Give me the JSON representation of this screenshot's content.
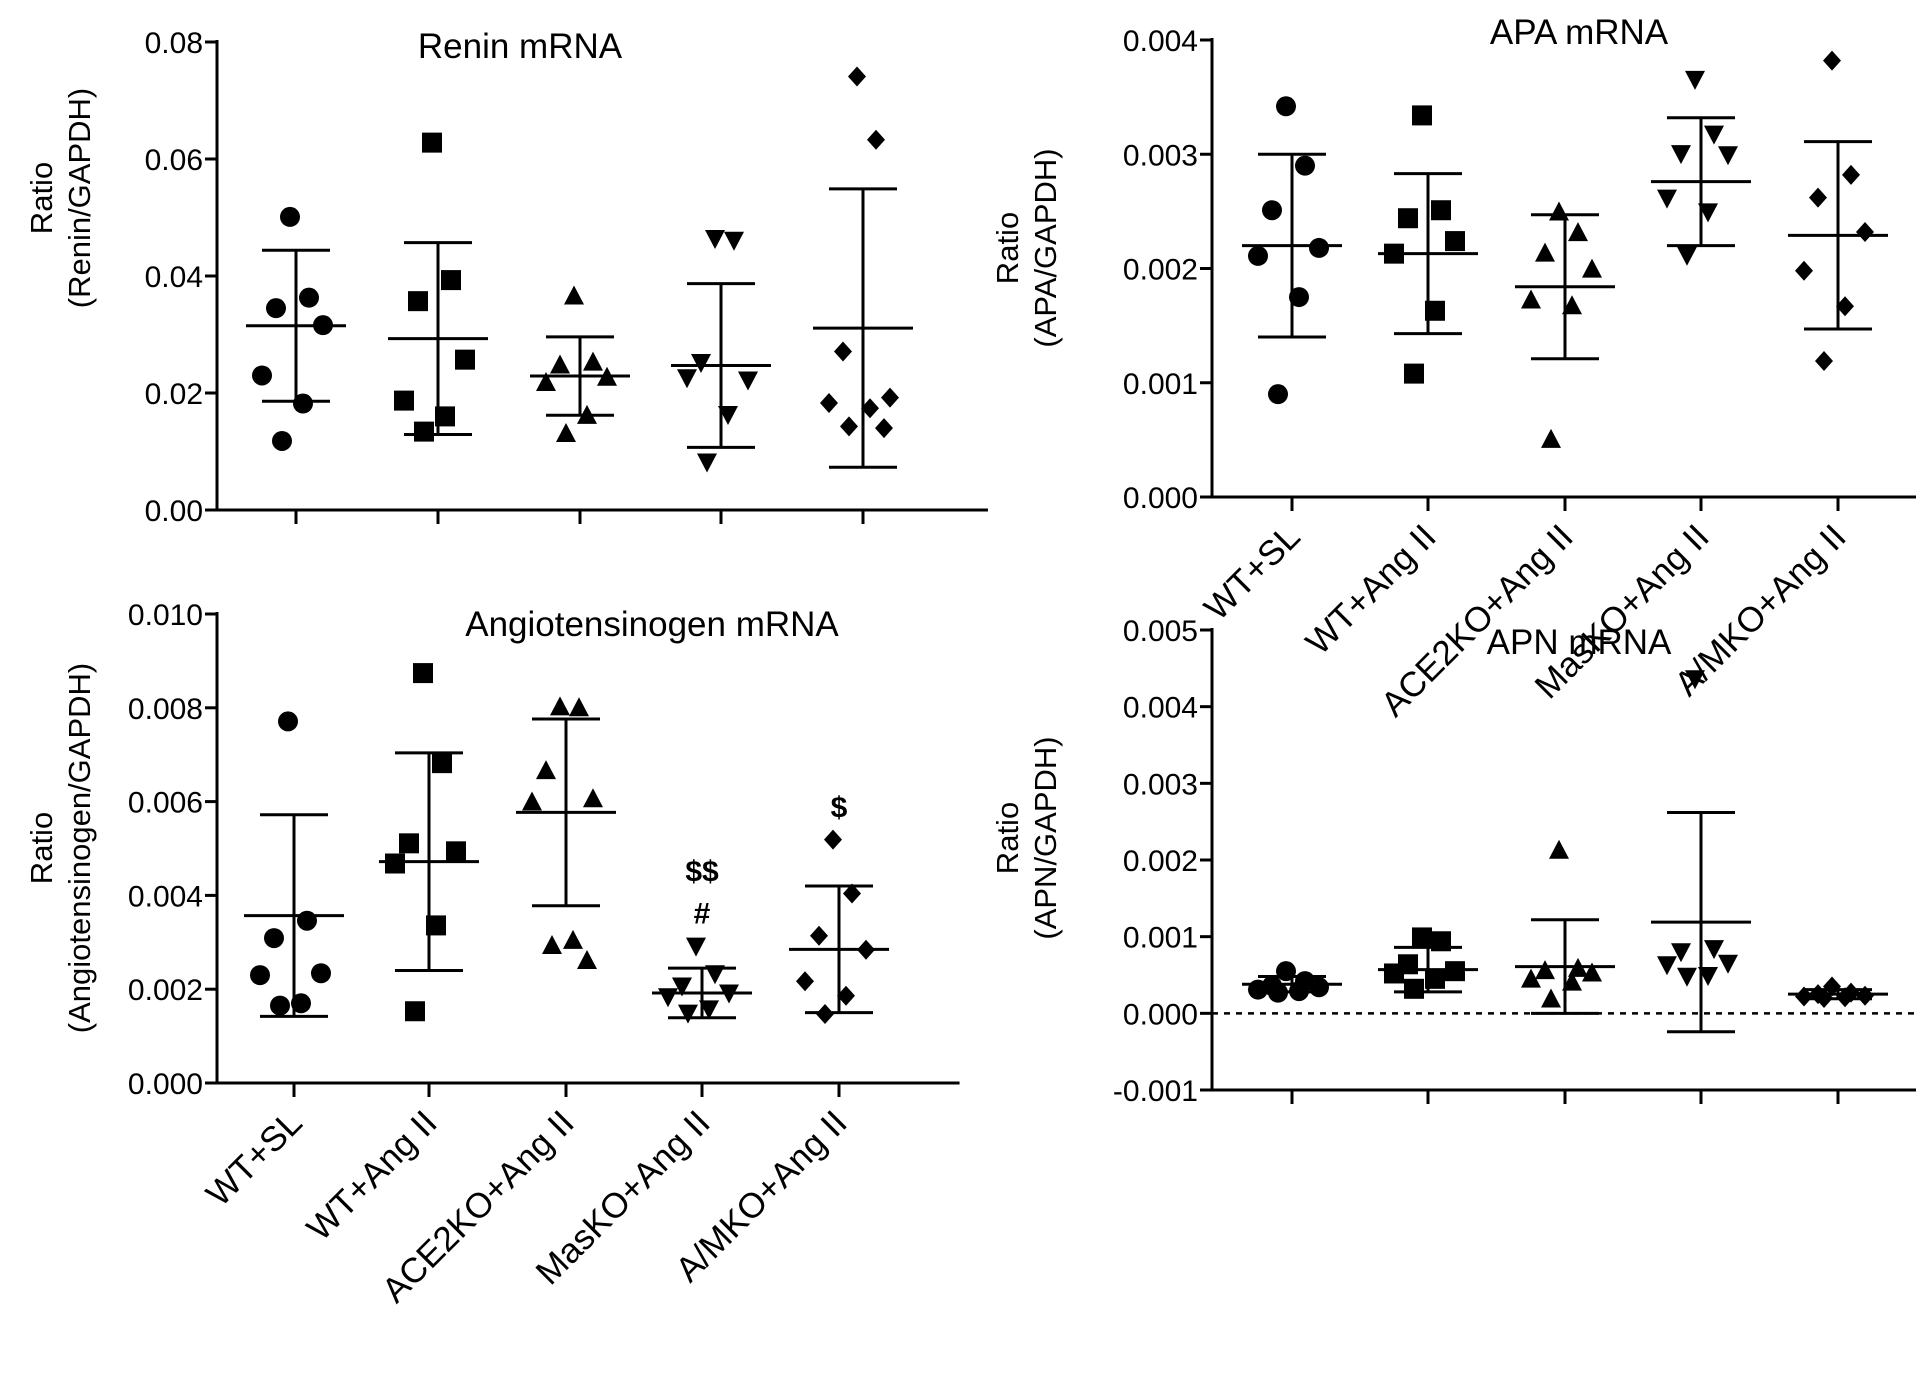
{
  "chart_data": [
    {
      "type": "scatter",
      "title": "Renin mRNA",
      "ylabel": [
        "Ratio",
        "(Renin/GAPDH)"
      ],
      "categories": [
        "WT+SL",
        "WT+Ang II",
        "ACE2KO+Ang II",
        "MasKO+Ang II",
        "A/MKO+Ang II"
      ],
      "show_category_labels": false,
      "markers": [
        "circle",
        "square",
        "triangle-up",
        "triangle-down",
        "diamond"
      ],
      "ylim": [
        0,
        0.08
      ],
      "yticks": [
        0,
        0.02,
        0.04,
        0.06,
        0.08
      ],
      "ytick_labels": [
        "0.00",
        "0.02",
        "0.04",
        "0.06",
        "0.08"
      ],
      "zero_line": false,
      "points": [
        [
          0.0501,
          0.0363,
          0.0345,
          0.0316,
          0.023,
          0.0182,
          0.0118
        ],
        [
          0.0628,
          0.0393,
          0.0357,
          0.0257,
          0.0187,
          0.016,
          0.0134
        ],
        [
          0.0365,
          0.0252,
          0.0247,
          0.0226,
          0.0217,
          0.0161,
          0.013
        ],
        [
          0.0465,
          0.0462,
          0.0253,
          0.0223,
          0.0227,
          0.0164,
          0.0083
        ],
        [
          0.0741,
          0.0633,
          0.0271,
          0.0192,
          0.0183,
          0.0174,
          0.0143,
          0.014
        ]
      ],
      "mean": [
        0.0315,
        0.0293,
        0.0229,
        0.0247,
        0.0311
      ],
      "sd": [
        0.0129,
        0.0164,
        0.0067,
        0.014,
        0.0238
      ],
      "annotations": []
    },
    {
      "type": "scatter",
      "title": "APA mRNA",
      "ylabel": [
        "Ratio",
        "(APA/GAPDH)"
      ],
      "categories": [
        "WT+SL",
        "WT+Ang II",
        "ACE2KO+Ang II",
        "MasKO+Ang II",
        "A/MKO+Ang II"
      ],
      "show_category_labels": true,
      "markers": [
        "circle",
        "square",
        "triangle-up",
        "triangle-down",
        "diamond"
      ],
      "ylim": [
        0,
        0.004
      ],
      "yticks": [
        0,
        0.001,
        0.002,
        0.003,
        0.004
      ],
      "ytick_labels": [
        "0.000",
        "0.001",
        "0.002",
        "0.003",
        "0.004"
      ],
      "zero_line": false,
      "points": [
        [
          0.00342,
          0.0029,
          0.00251,
          0.00218,
          0.00211,
          0.00175,
          0.0009
        ],
        [
          0.00334,
          0.00251,
          0.00244,
          0.00224,
          0.00213,
          0.00163,
          0.00108
        ],
        [
          0.00249,
          0.00231,
          0.00213,
          0.00199,
          0.00172,
          0.00167,
          0.0005
        ],
        [
          0.00366,
          0.00318,
          0.00301,
          0.003,
          0.00262,
          0.0025,
          0.00212
        ],
        [
          0.00382,
          0.00282,
          0.00262,
          0.00232,
          0.00198,
          0.00167,
          0.00119
        ]
      ],
      "mean": [
        0.0022,
        0.00213,
        0.00184,
        0.00276,
        0.00229
      ],
      "sd": [
        0.0008,
        0.0007,
        0.00063,
        0.00056,
        0.00082
      ],
      "annotations": []
    },
    {
      "type": "scatter",
      "title": "Angiotensinogen mRNA",
      "ylabel": [
        "Ratio",
        "(Angiotensinogen/GAPDH)"
      ],
      "categories": [
        "WT+SL",
        "WT+Ang II",
        "ACE2KO+Ang II",
        "MasKO+Ang II",
        "A/MKO+Ang II"
      ],
      "show_category_labels": true,
      "markers": [
        "circle",
        "square",
        "triangle-up",
        "triangle-down",
        "diamond"
      ],
      "ylim": [
        0,
        0.01
      ],
      "yticks": [
        0,
        0.002,
        0.004,
        0.006,
        0.008,
        0.01
      ],
      "ytick_labels": [
        "0.000",
        "0.002",
        "0.004",
        "0.006",
        "0.008",
        "0.010"
      ],
      "zero_line": false,
      "points": [
        [
          0.00771,
          0.00346,
          0.00309,
          0.00234,
          0.0023,
          0.0017,
          0.00165
        ],
        [
          0.00874,
          0.00682,
          0.00511,
          0.00494,
          0.00468,
          0.00336,
          0.00153
        ],
        [
          0.00801,
          0.00799,
          0.00665,
          0.00605,
          0.00598,
          0.00303,
          0.00292,
          0.0026
        ],
        [
          0.00293,
          0.00234,
          0.00208,
          0.00193,
          0.00185,
          0.00159,
          0.0015
        ],
        [
          0.00519,
          0.00404,
          0.00314,
          0.00284,
          0.00217,
          0.00186,
          0.00147
        ]
      ],
      "mean": [
        0.00357,
        0.00472,
        0.00577,
        0.00192,
        0.00285
      ],
      "sd": [
        0.00215,
        0.00232,
        0.00199,
        0.00053,
        0.00135
      ],
      "annotations": [
        {
          "category": "MasKO+Ang II",
          "lines": [
            "$$",
            "#"
          ]
        },
        {
          "category": "A/MKO+Ang II",
          "lines": [
            "$"
          ]
        }
      ]
    },
    {
      "type": "scatter",
      "title": "APN mRNA",
      "ylabel": [
        "Ratio",
        "(APN/GAPDH)"
      ],
      "categories": [
        "WT+SL",
        "WT+Ang II",
        "ACE2KO+Ang II",
        "MasKO+Ang II",
        "A/MKO+Ang II"
      ],
      "show_category_labels": false,
      "markers": [
        "circle",
        "square",
        "triangle-up",
        "triangle-down",
        "diamond"
      ],
      "ylim": [
        -0.001,
        0.005
      ],
      "yticks": [
        -0.001,
        0,
        0.001,
        0.002,
        0.003,
        0.004,
        0.005
      ],
      "ytick_labels": [
        "-0.001",
        "0.000",
        "0.001",
        "0.002",
        "0.003",
        "0.004",
        "0.005"
      ],
      "zero_line": true,
      "points": [
        [
          0.00055,
          0.00042,
          0.00036,
          0.00034,
          0.00031,
          0.00029,
          0.00027
        ],
        [
          0.00099,
          0.00094,
          0.00064,
          0.00055,
          0.00052,
          0.00045,
          0.00032
        ],
        [
          0.00212,
          0.00058,
          0.00055,
          0.00052,
          0.00044,
          0.0004,
          0.00018
        ],
        [
          0.00437,
          0.00085,
          0.00081,
          0.00066,
          0.00064,
          0.0005,
          0.00049
        ],
        [
          0.00035,
          0.00027,
          0.00025,
          0.00023,
          0.00022,
          0.00021,
          0.0002
        ]
      ],
      "mean": [
        0.00038,
        0.00057,
        0.00061,
        0.00119,
        0.00025
      ],
      "sd": [
        0.0001,
        0.00029,
        0.00061,
        0.00143,
        6e-05
      ],
      "annotations": []
    }
  ]
}
